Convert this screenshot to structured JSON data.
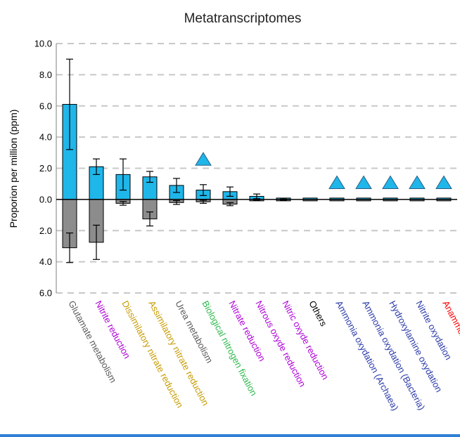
{
  "chart_data": {
    "type": "bar",
    "title": "Metatranscriptomes",
    "ylabel": "Proporion per million (ppm)",
    "xlabel": "",
    "ylim": [
      -6,
      10
    ],
    "yticks": [
      {
        "value": 10,
        "label": "10.0"
      },
      {
        "value": 8,
        "label": "8.0"
      },
      {
        "value": 6,
        "label": "6.0"
      },
      {
        "value": 4,
        "label": "4.0"
      },
      {
        "value": 2,
        "label": "2.0"
      },
      {
        "value": 0,
        "label": "0.0"
      },
      {
        "value": -2,
        "label": "2.0"
      },
      {
        "value": -4,
        "label": "4.0"
      },
      {
        "value": -6,
        "label": "6.0"
      }
    ],
    "grid": true,
    "categories": [
      {
        "label": "Glutamate metabolism",
        "color": "#595959"
      },
      {
        "label": "Nitrite reduction",
        "color": "#b000d8"
      },
      {
        "label": "Dissimilatory nitrate reduction",
        "color": "#c79a00"
      },
      {
        "label": "Assimilatory nitrate reduction",
        "color": "#c79a00"
      },
      {
        "label": "Urea metabolism",
        "color": "#595959"
      },
      {
        "label": "Biological nitrogen fixation",
        "color": "#2db84b"
      },
      {
        "label": "Nitrate reduction",
        "color": "#b000d8"
      },
      {
        "label": "Nitrous oxyde reduction",
        "color": "#b000d8"
      },
      {
        "label": "Nitric oxyde reduction",
        "color": "#b000d8"
      },
      {
        "label": "Others",
        "color": "#000000"
      },
      {
        "label": "Ammonia oxydation (Archaea)",
        "color": "#2a3aa8"
      },
      {
        "label": "Ammonia oxydation (Bacteria)",
        "color": "#2a3aa8"
      },
      {
        "label": "Hydroxylamine oxydation",
        "color": "#2a3aa8"
      },
      {
        "label": "Nitrite oxydation",
        "color": "#2a3aa8"
      },
      {
        "label": "Anammox",
        "color": "#ff0000"
      }
    ],
    "series": [
      {
        "values": [
          6.1,
          2.1,
          1.6,
          1.45,
          0.9,
          0.6,
          0.5,
          0.2,
          0.05,
          0.02,
          0.03,
          0.03,
          0.03,
          0.03,
          0.03
        ],
        "errors": [
          2.9,
          0.5,
          1.0,
          0.35,
          0.45,
          0.35,
          0.3,
          0.15,
          0.03,
          0.0,
          0.0,
          0.0,
          0.0,
          0.0,
          0.0
        ],
        "color": "#1fb6e9"
      },
      {
        "values": [
          -3.1,
          -2.75,
          -0.25,
          -1.25,
          -0.2,
          -0.15,
          -0.3,
          -0.05,
          -0.05,
          -0.03,
          -0.03,
          -0.03,
          -0.03,
          -0.03,
          -0.03
        ],
        "errors": [
          0.95,
          1.1,
          0.12,
          0.45,
          0.12,
          0.1,
          0.1,
          0.02,
          0.02,
          0.0,
          0.0,
          0.0,
          0.0,
          0.0,
          0.0
        ],
        "color": "#8c8c8c"
      }
    ],
    "markers": [
      {
        "category_index": 5,
        "y": 2.6,
        "shape": "triangle"
      },
      {
        "category_index": 10,
        "y": 1.1,
        "shape": "triangle"
      },
      {
        "category_index": 11,
        "y": 1.1,
        "shape": "triangle"
      },
      {
        "category_index": 12,
        "y": 1.1,
        "shape": "triangle"
      },
      {
        "category_index": 13,
        "y": 1.1,
        "shape": "triangle"
      },
      {
        "category_index": 14,
        "y": 1.1,
        "shape": "triangle"
      }
    ],
    "marker_color": "#1fb6e9"
  }
}
